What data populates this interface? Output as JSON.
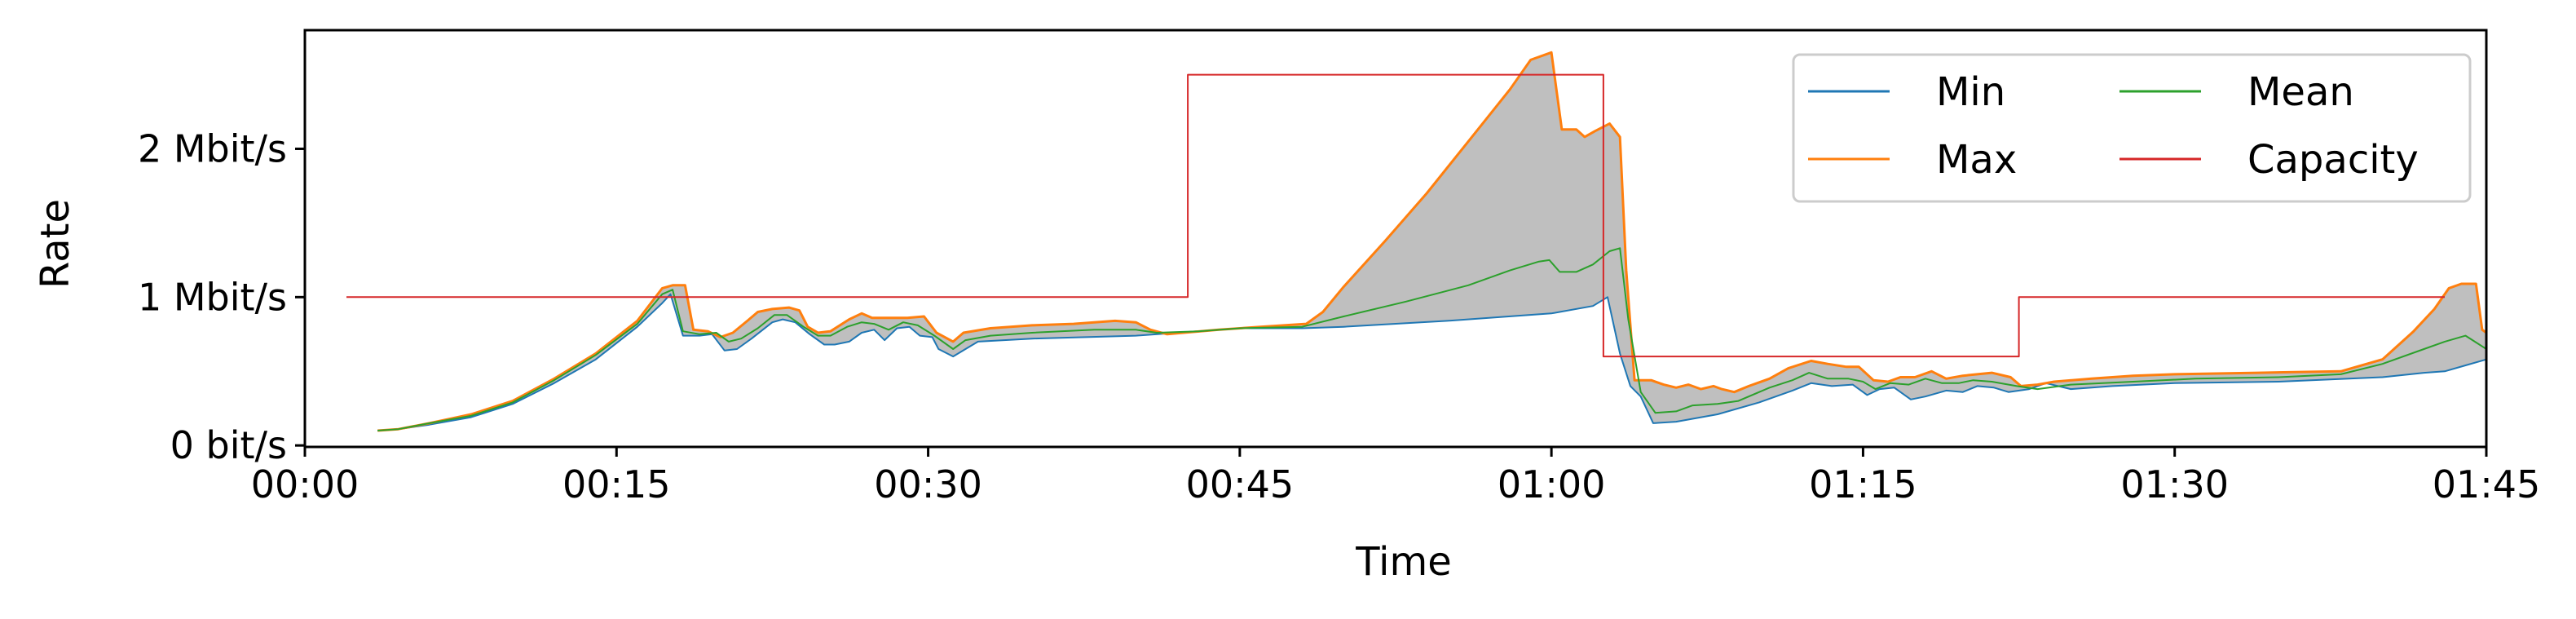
{
  "chart_data": {
    "type": "line",
    "xlabel": "Time",
    "ylabel": "Rate",
    "x_unit": "minutes",
    "y_unit": "Mbit/s",
    "xlim": [
      0,
      105
    ],
    "ylim": [
      -0.01,
      2.8
    ],
    "x_ticks": [
      {
        "value": 0,
        "label": "00:00"
      },
      {
        "value": 15,
        "label": "00:15"
      },
      {
        "value": 30,
        "label": "00:30"
      },
      {
        "value": 45,
        "label": "00:45"
      },
      {
        "value": 60,
        "label": "01:00"
      },
      {
        "value": 75,
        "label": "01:15"
      },
      {
        "value": 90,
        "label": "01:30"
      },
      {
        "value": 105,
        "label": "01:45"
      }
    ],
    "y_ticks": [
      {
        "value": 0,
        "label": "0 bit/s"
      },
      {
        "value": 1,
        "label": "1 Mbit/s"
      },
      {
        "value": 2,
        "label": "2 Mbit/s"
      }
    ],
    "legend": {
      "position": "top-right",
      "columns": 2,
      "order": [
        "Min",
        "Max",
        "Mean",
        "Capacity"
      ]
    },
    "fill_between": {
      "lower": "Min",
      "upper": "Max",
      "color": "#bfbfbf"
    },
    "grid": false,
    "series": [
      {
        "name": "Min",
        "color": "#1f77b4",
        "points": [
          [
            3.5,
            0.1
          ],
          [
            4.5,
            0.11
          ],
          [
            6,
            0.14
          ],
          [
            8,
            0.19
          ],
          [
            10,
            0.28
          ],
          [
            12,
            0.42
          ],
          [
            14,
            0.58
          ],
          [
            16,
            0.8
          ],
          [
            17.2,
            0.96
          ],
          [
            17.6,
            1.02
          ],
          [
            18.2,
            0.74
          ],
          [
            19,
            0.74
          ],
          [
            19.6,
            0.75
          ],
          [
            20.2,
            0.64
          ],
          [
            20.8,
            0.65
          ],
          [
            21.5,
            0.72
          ],
          [
            22.5,
            0.83
          ],
          [
            23,
            0.85
          ],
          [
            23.6,
            0.83
          ],
          [
            24.3,
            0.75
          ],
          [
            25,
            0.68
          ],
          [
            25.5,
            0.68
          ],
          [
            26.2,
            0.7
          ],
          [
            26.8,
            0.76
          ],
          [
            27.4,
            0.78
          ],
          [
            27.9,
            0.71
          ],
          [
            28.5,
            0.79
          ],
          [
            29.1,
            0.8
          ],
          [
            29.6,
            0.74
          ],
          [
            30.2,
            0.73
          ],
          [
            30.5,
            0.65
          ],
          [
            31.2,
            0.6
          ],
          [
            31.8,
            0.65
          ],
          [
            32.4,
            0.7
          ],
          [
            35,
            0.72
          ],
          [
            40,
            0.74
          ],
          [
            42,
            0.76
          ],
          [
            45,
            0.79
          ],
          [
            48,
            0.79
          ],
          [
            50,
            0.8
          ],
          [
            55,
            0.84
          ],
          [
            60,
            0.89
          ],
          [
            62,
            0.94
          ],
          [
            62.7,
            1.0
          ],
          [
            63.3,
            0.62
          ],
          [
            63.8,
            0.4
          ],
          [
            64.3,
            0.33
          ],
          [
            64.9,
            0.15
          ],
          [
            66,
            0.16
          ],
          [
            68,
            0.21
          ],
          [
            70,
            0.29
          ],
          [
            71.6,
            0.37
          ],
          [
            72.5,
            0.42
          ],
          [
            73.5,
            0.4
          ],
          [
            74.5,
            0.41
          ],
          [
            75.2,
            0.34
          ],
          [
            75.8,
            0.38
          ],
          [
            76.5,
            0.39
          ],
          [
            77.3,
            0.31
          ],
          [
            78,
            0.33
          ],
          [
            79,
            0.37
          ],
          [
            79.8,
            0.36
          ],
          [
            80.5,
            0.4
          ],
          [
            81.3,
            0.39
          ],
          [
            82,
            0.36
          ],
          [
            83,
            0.38
          ],
          [
            83.8,
            0.42
          ],
          [
            85,
            0.38
          ],
          [
            87,
            0.4
          ],
          [
            90,
            0.42
          ],
          [
            95,
            0.43
          ],
          [
            100,
            0.46
          ],
          [
            102,
            0.49
          ],
          [
            103,
            0.5
          ],
          [
            104,
            0.54
          ],
          [
            105,
            0.58
          ]
        ]
      },
      {
        "name": "Max",
        "color": "#ff7f0e",
        "points": [
          [
            3.5,
            0.1
          ],
          [
            4.5,
            0.11
          ],
          [
            6,
            0.15
          ],
          [
            8,
            0.21
          ],
          [
            10,
            0.3
          ],
          [
            12,
            0.45
          ],
          [
            14,
            0.62
          ],
          [
            16,
            0.84
          ],
          [
            17.2,
            1.06
          ],
          [
            17.7,
            1.08
          ],
          [
            18.3,
            1.08
          ],
          [
            18.7,
            0.78
          ],
          [
            19.4,
            0.77
          ],
          [
            20,
            0.73
          ],
          [
            20.6,
            0.76
          ],
          [
            21.3,
            0.84
          ],
          [
            21.8,
            0.9
          ],
          [
            22.5,
            0.92
          ],
          [
            23.3,
            0.93
          ],
          [
            23.8,
            0.91
          ],
          [
            24.2,
            0.8
          ],
          [
            24.7,
            0.76
          ],
          [
            25.3,
            0.77
          ],
          [
            26.2,
            0.85
          ],
          [
            26.8,
            0.89
          ],
          [
            27.3,
            0.86
          ],
          [
            28.2,
            0.86
          ],
          [
            29,
            0.86
          ],
          [
            29.8,
            0.87
          ],
          [
            30.4,
            0.76
          ],
          [
            31.2,
            0.7
          ],
          [
            31.7,
            0.76
          ],
          [
            33,
            0.79
          ],
          [
            35,
            0.81
          ],
          [
            37,
            0.82
          ],
          [
            39,
            0.84
          ],
          [
            40,
            0.83
          ],
          [
            40.7,
            0.78
          ],
          [
            41.5,
            0.75
          ],
          [
            44,
            0.78
          ],
          [
            46,
            0.8
          ],
          [
            48.2,
            0.82
          ],
          [
            49,
            0.9
          ],
          [
            50,
            1.07
          ],
          [
            52,
            1.38
          ],
          [
            54,
            1.7
          ],
          [
            56,
            2.05
          ],
          [
            58,
            2.4
          ],
          [
            59,
            2.6
          ],
          [
            60,
            2.65
          ],
          [
            60.5,
            2.13
          ],
          [
            61.2,
            2.13
          ],
          [
            61.6,
            2.08
          ],
          [
            62.1,
            2.12
          ],
          [
            62.8,
            2.17
          ],
          [
            63.3,
            2.08
          ],
          [
            63.6,
            1.18
          ],
          [
            64,
            0.44
          ],
          [
            64.8,
            0.44
          ],
          [
            65.4,
            0.41
          ],
          [
            66,
            0.39
          ],
          [
            66.6,
            0.41
          ],
          [
            67.2,
            0.38
          ],
          [
            67.8,
            0.4
          ],
          [
            68.2,
            0.38
          ],
          [
            68.8,
            0.36
          ],
          [
            69.5,
            0.4
          ],
          [
            70.5,
            0.45
          ],
          [
            71.4,
            0.52
          ],
          [
            72.5,
            0.57
          ],
          [
            73.3,
            0.55
          ],
          [
            74.2,
            0.53
          ],
          [
            74.8,
            0.53
          ],
          [
            75.5,
            0.44
          ],
          [
            76.2,
            0.43
          ],
          [
            76.8,
            0.46
          ],
          [
            77.5,
            0.46
          ],
          [
            78.3,
            0.5
          ],
          [
            79,
            0.45
          ],
          [
            79.8,
            0.47
          ],
          [
            80.5,
            0.48
          ],
          [
            81.2,
            0.49
          ],
          [
            82.1,
            0.46
          ],
          [
            82.6,
            0.4
          ],
          [
            83.4,
            0.41
          ],
          [
            84.2,
            0.43
          ],
          [
            86,
            0.45
          ],
          [
            88,
            0.47
          ],
          [
            90,
            0.48
          ],
          [
            94,
            0.49
          ],
          [
            98,
            0.5
          ],
          [
            100,
            0.58
          ],
          [
            101.5,
            0.77
          ],
          [
            102.5,
            0.92
          ],
          [
            103.2,
            1.06
          ],
          [
            103.8,
            1.09
          ],
          [
            104.5,
            1.09
          ],
          [
            104.8,
            0.78
          ],
          [
            105,
            0.76
          ]
        ]
      },
      {
        "name": "Mean",
        "color": "#2ca02c",
        "points": [
          [
            3.5,
            0.1
          ],
          [
            4.5,
            0.11
          ],
          [
            6,
            0.15
          ],
          [
            8,
            0.2
          ],
          [
            10,
            0.29
          ],
          [
            12,
            0.44
          ],
          [
            14,
            0.61
          ],
          [
            16,
            0.82
          ],
          [
            17.2,
            1.02
          ],
          [
            17.7,
            1.05
          ],
          [
            18.2,
            0.77
          ],
          [
            19,
            0.75
          ],
          [
            19.8,
            0.76
          ],
          [
            20.4,
            0.7
          ],
          [
            21,
            0.72
          ],
          [
            21.8,
            0.79
          ],
          [
            22.6,
            0.88
          ],
          [
            23.2,
            0.88
          ],
          [
            24,
            0.8
          ],
          [
            24.7,
            0.74
          ],
          [
            25.3,
            0.74
          ],
          [
            26.1,
            0.8
          ],
          [
            26.8,
            0.83
          ],
          [
            27.4,
            0.82
          ],
          [
            28.1,
            0.78
          ],
          [
            28.8,
            0.83
          ],
          [
            29.5,
            0.81
          ],
          [
            30.3,
            0.74
          ],
          [
            31.2,
            0.65
          ],
          [
            31.8,
            0.71
          ],
          [
            33,
            0.74
          ],
          [
            35,
            0.76
          ],
          [
            38,
            0.78
          ],
          [
            40,
            0.78
          ],
          [
            41,
            0.76
          ],
          [
            43,
            0.77
          ],
          [
            45,
            0.79
          ],
          [
            48,
            0.8
          ],
          [
            50,
            0.87
          ],
          [
            53,
            0.97
          ],
          [
            56,
            1.08
          ],
          [
            58,
            1.18
          ],
          [
            59.4,
            1.24
          ],
          [
            59.9,
            1.25
          ],
          [
            60.4,
            1.17
          ],
          [
            61.2,
            1.17
          ],
          [
            62,
            1.22
          ],
          [
            62.8,
            1.31
          ],
          [
            63.3,
            1.33
          ],
          [
            63.7,
            0.85
          ],
          [
            64.3,
            0.36
          ],
          [
            65,
            0.22
          ],
          [
            66,
            0.23
          ],
          [
            66.8,
            0.27
          ],
          [
            68,
            0.28
          ],
          [
            69,
            0.3
          ],
          [
            70.5,
            0.39
          ],
          [
            71.6,
            0.44
          ],
          [
            72.4,
            0.49
          ],
          [
            73.3,
            0.45
          ],
          [
            74.3,
            0.45
          ],
          [
            75,
            0.43
          ],
          [
            75.6,
            0.38
          ],
          [
            76.3,
            0.42
          ],
          [
            77.2,
            0.41
          ],
          [
            78,
            0.45
          ],
          [
            78.8,
            0.42
          ],
          [
            79.6,
            0.42
          ],
          [
            80.3,
            0.44
          ],
          [
            81.2,
            0.43
          ],
          [
            82.4,
            0.4
          ],
          [
            83.4,
            0.38
          ],
          [
            85,
            0.41
          ],
          [
            88,
            0.43
          ],
          [
            91,
            0.45
          ],
          [
            95,
            0.46
          ],
          [
            98,
            0.48
          ],
          [
            100,
            0.55
          ],
          [
            102,
            0.65
          ],
          [
            103,
            0.7
          ],
          [
            104,
            0.74
          ],
          [
            105,
            0.65
          ]
        ]
      },
      {
        "name": "Capacity",
        "color": "#d62728",
        "step": true,
        "points": [
          [
            2,
            1.0
          ],
          [
            42.5,
            1.0
          ],
          [
            42.5,
            2.5
          ],
          [
            62.5,
            2.5
          ],
          [
            62.5,
            0.6
          ],
          [
            82.5,
            0.6
          ],
          [
            82.5,
            1.0
          ],
          [
            103,
            1.0
          ]
        ]
      }
    ]
  }
}
